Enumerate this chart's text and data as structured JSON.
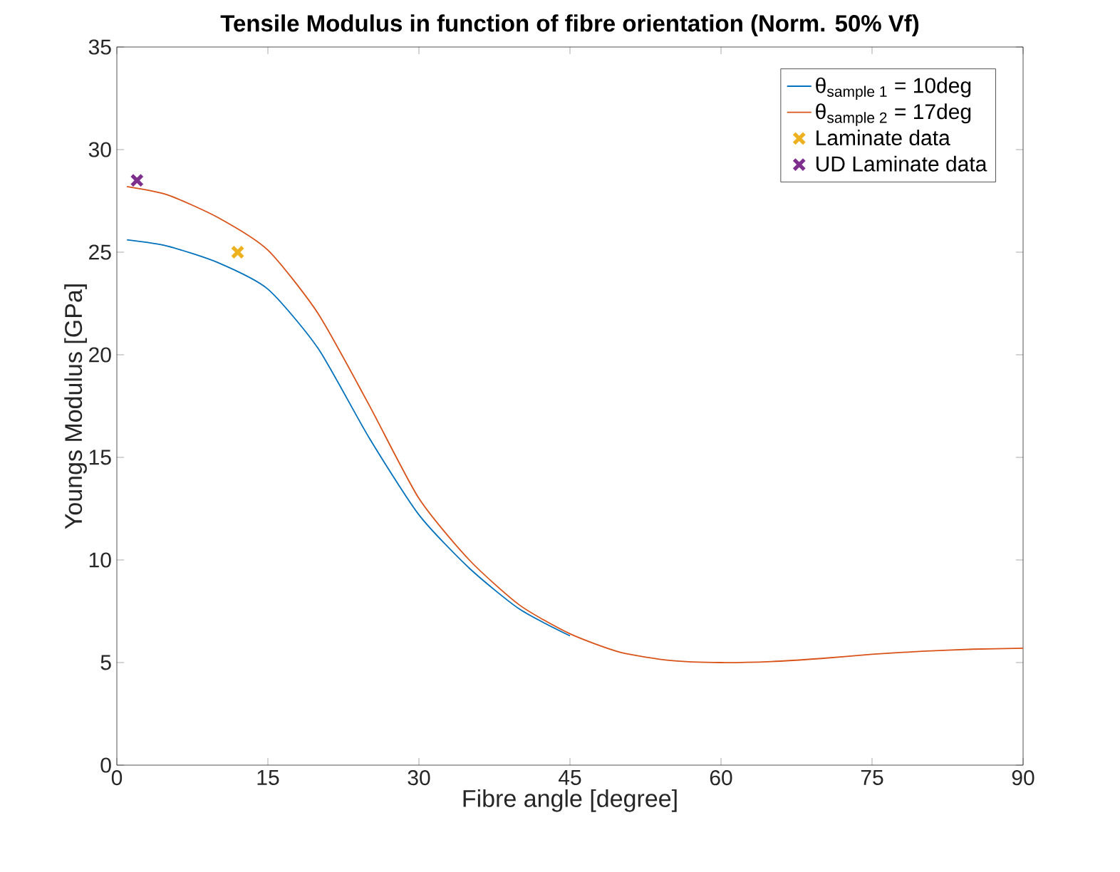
{
  "chart_data": {
    "type": "line",
    "title": "Tensile Modulus in function of fibre orientation (Norm. 50% Vf)",
    "xlabel": "Fibre angle [degree]",
    "ylabel": "Youngs Modulus [GPa]",
    "xlim": [
      0,
      90
    ],
    "ylim": [
      0,
      35
    ],
    "xticks": [
      0,
      15,
      30,
      45,
      60,
      75,
      90
    ],
    "yticks": [
      0,
      5,
      10,
      15,
      20,
      25,
      30,
      35
    ],
    "grid": false,
    "legend": "top right",
    "series": [
      {
        "name": "θ$_{sample 1}$ = 10deg",
        "color": "#0072bd",
        "x": [
          1,
          5,
          10,
          15,
          20,
          25,
          30,
          35,
          40,
          45
        ],
        "values": [
          25.6,
          25.3,
          24.5,
          23.2,
          20.3,
          16.0,
          12.2,
          9.6,
          7.6,
          6.3
        ]
      },
      {
        "name": "θ$_{sample 2}$ = 17deg",
        "color": "#d95319",
        "x": [
          1,
          5,
          10,
          15,
          20,
          25,
          30,
          35,
          40,
          45,
          50,
          55,
          60,
          65,
          70,
          75,
          80,
          85,
          90
        ],
        "values": [
          28.2,
          27.8,
          26.7,
          25.1,
          22.0,
          17.6,
          13.0,
          10.0,
          7.8,
          6.4,
          5.5,
          5.1,
          5.0,
          5.05,
          5.2,
          5.4,
          5.55,
          5.65,
          5.7
        ]
      },
      {
        "name": "Laminate data",
        "type": "scatter",
        "marker": "cross",
        "color": "#edb120",
        "x": [
          12
        ],
        "values": [
          25
        ]
      },
      {
        "name": "UD Laminate data",
        "type": "scatter",
        "marker": "cross",
        "color": "#7e2f8e",
        "x": [
          2
        ],
        "values": [
          28.5
        ]
      }
    ]
  }
}
